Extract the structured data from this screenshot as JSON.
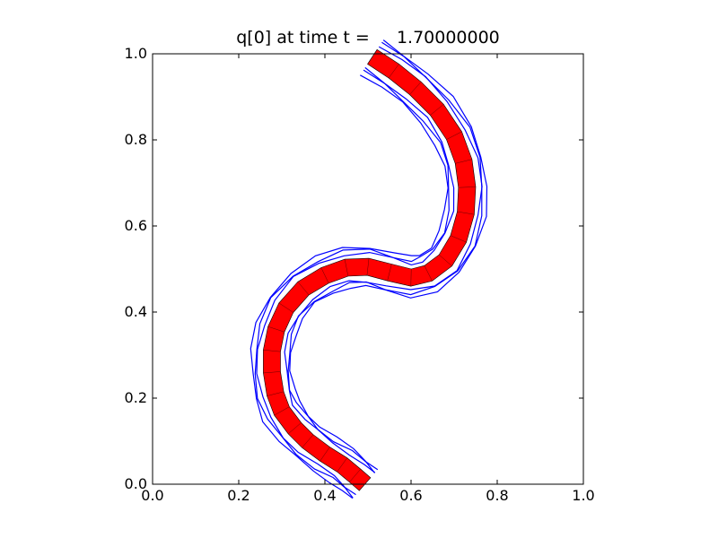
{
  "chart_data": {
    "type": "line",
    "title": "q[0] at time t =     1.70000000",
    "xlabel": "",
    "ylabel": "",
    "xlim": [
      0.0,
      1.0
    ],
    "ylim": [
      0.0,
      1.0
    ],
    "aspect": "equal",
    "grid": false,
    "legend": null,
    "xtick_labels": [
      "0.0",
      "0.2",
      "0.4",
      "0.6",
      "0.8",
      "1.0"
    ],
    "ytick_labels": [
      "0.0",
      "0.2",
      "0.4",
      "0.6",
      "0.8",
      "1.0"
    ],
    "colors": {
      "band_fill": "#ff0000",
      "band_grid": "#000000",
      "contour": "#0000ff"
    },
    "series": [
      {
        "kind": "filled band (q[0] > threshold), centerline",
        "color": "#ff0000",
        "x": [
          0.493,
          0.47,
          0.44,
          0.4,
          0.36,
          0.33,
          0.3,
          0.285,
          0.277,
          0.277,
          0.287,
          0.31,
          0.35,
          0.4,
          0.45,
          0.5,
          0.55,
          0.6,
          0.64,
          0.68,
          0.71,
          0.727,
          0.73,
          0.722,
          0.7,
          0.66,
          0.61,
          0.56,
          0.51
        ],
        "y": [
          0.0,
          0.02,
          0.045,
          0.07,
          0.1,
          0.13,
          0.17,
          0.21,
          0.26,
          0.31,
          0.36,
          0.41,
          0.455,
          0.485,
          0.503,
          0.505,
          0.492,
          0.48,
          0.49,
          0.52,
          0.57,
          0.63,
          0.69,
          0.75,
          0.81,
          0.87,
          0.92,
          0.96,
          0.993
        ],
        "half_width": 0.02
      },
      {
        "kind": "contour",
        "color": "#0000ff",
        "offsets": [
          -0.045,
          -0.038,
          -0.032,
          0.032,
          0.039,
          0.047
        ]
      }
    ]
  }
}
